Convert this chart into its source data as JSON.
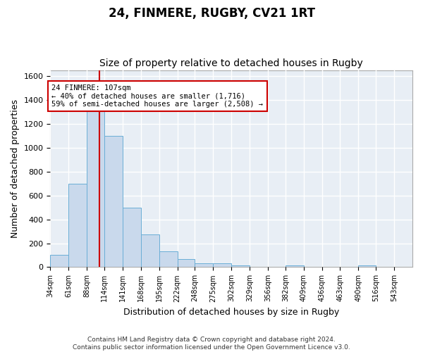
{
  "title_main": "24, FINMERE, RUGBY, CV21 1RT",
  "title_sub": "Size of property relative to detached houses in Rugby",
  "xlabel": "Distribution of detached houses by size in Rugby",
  "ylabel": "Number of detached properties",
  "footnote": "Contains HM Land Registry data © Crown copyright and database right 2024.\nContains public sector information licensed under the Open Government Licence v3.0.",
  "bin_edges": [
    34,
    61,
    88,
    114,
    141,
    168,
    195,
    222,
    248,
    275,
    302,
    329,
    356,
    382,
    409,
    436,
    463,
    490,
    516,
    543,
    570
  ],
  "bar_heights": [
    100,
    700,
    1330,
    1100,
    500,
    275,
    135,
    70,
    35,
    35,
    15,
    0,
    0,
    15,
    0,
    0,
    0,
    15,
    0,
    0
  ],
  "bar_color": "#c9d9ec",
  "bar_edgecolor": "#6aaed6",
  "property_size": 107,
  "property_label": "24 FINMERE: 107sqm",
  "annotation_line1": "← 40% of detached houses are smaller (1,716)",
  "annotation_line2": "59% of semi-detached houses are larger (2,508) →",
  "vline_color": "#cc0000",
  "annotation_box_edgecolor": "#cc0000",
  "ylim": [
    0,
    1650
  ],
  "yticks": [
    0,
    200,
    400,
    600,
    800,
    1000,
    1200,
    1400,
    1600
  ],
  "background_color": "#e8eef5",
  "grid_color": "#ffffff",
  "fig_background": "#ffffff",
  "title_fontsize": 12,
  "subtitle_fontsize": 10,
  "axis_label_fontsize": 9,
  "tick_fontsize": 8,
  "footnote_fontsize": 6.5
}
